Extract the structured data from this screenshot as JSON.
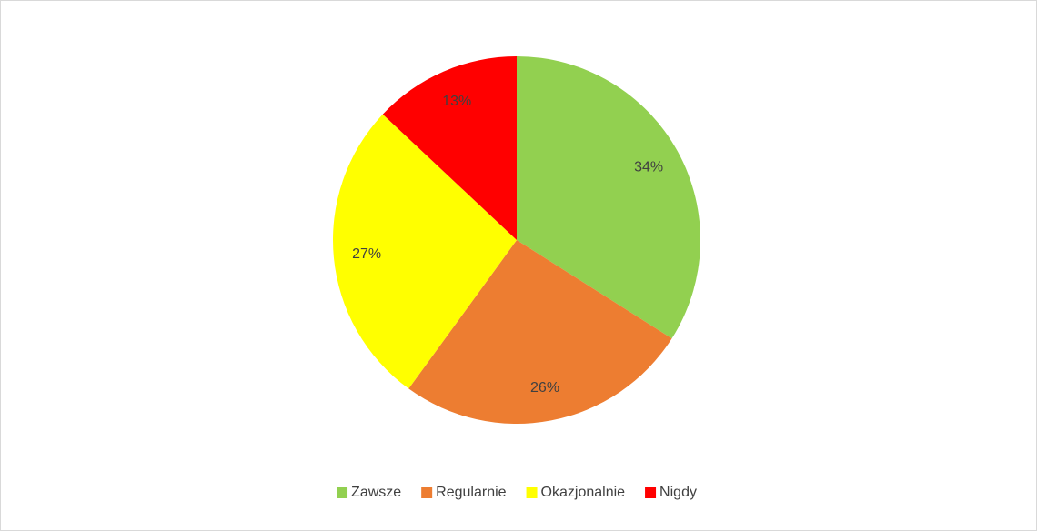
{
  "chart_data": {
    "type": "pie",
    "categories": [
      "Zawsze",
      "Regularnie",
      "Okazjonalnie",
      "Nigdy"
    ],
    "values": [
      34,
      26,
      27,
      13
    ],
    "value_labels": [
      "34%",
      "26%",
      "27%",
      "13%"
    ],
    "colors": [
      "#92d050",
      "#ed7d31",
      "#ffff00",
      "#ff0000"
    ],
    "legend": "bottom"
  }
}
